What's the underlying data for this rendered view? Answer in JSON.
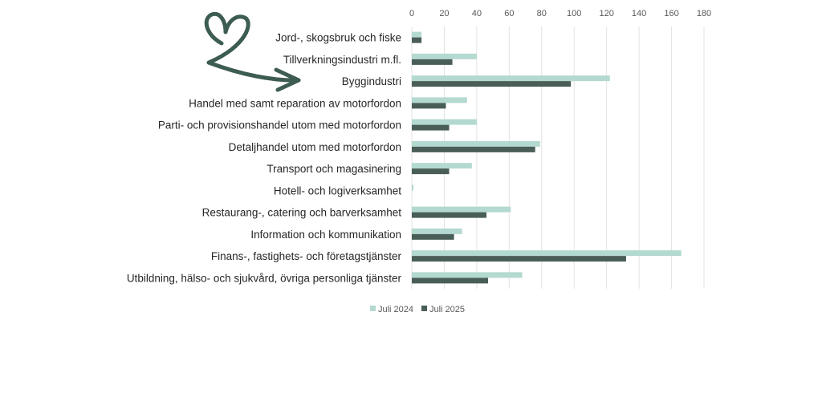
{
  "chart_data": {
    "type": "bar",
    "orientation": "horizontal",
    "categories": [
      "Jord-, skogsbruk och fiske",
      "Tillverkningsindustri m.fl.",
      "Byggindustri",
      "Handel med samt reparation av motorfordon",
      "Parti- och provisionshandel utom med motorfordon",
      "Detaljhandel utom med motorfordon",
      "Transport och magasinering",
      "Hotell- och logiverksamhet",
      "Restaurang-, catering och barverksamhet",
      "Information och kommunikation",
      "Finans-, fastighets- och företagstjänster",
      "Utbildning, hälso- och sjukvård, övriga personliga tjänster"
    ],
    "series": [
      {
        "name": "Juli 2024",
        "color": "#b3d9d0",
        "values": [
          6,
          40,
          122,
          34,
          40,
          79,
          37,
          1,
          61,
          31,
          166,
          68
        ]
      },
      {
        "name": "Juli 2025",
        "color": "#4a5e58",
        "values": [
          6,
          25,
          98,
          21,
          23,
          76,
          23,
          0,
          46,
          26,
          132,
          47
        ]
      }
    ],
    "xticks": [
      "0",
      "20",
      "40",
      "60",
      "80",
      "100",
      "120",
      "140",
      "160",
      "180"
    ],
    "xlim": [
      0,
      180
    ],
    "grid": true,
    "legend_position": "bottom",
    "title": "",
    "xlabel": "",
    "ylabel": ""
  },
  "decoration": {
    "icon": "heart-arrow-doodle",
    "color": "#3d5c52"
  }
}
